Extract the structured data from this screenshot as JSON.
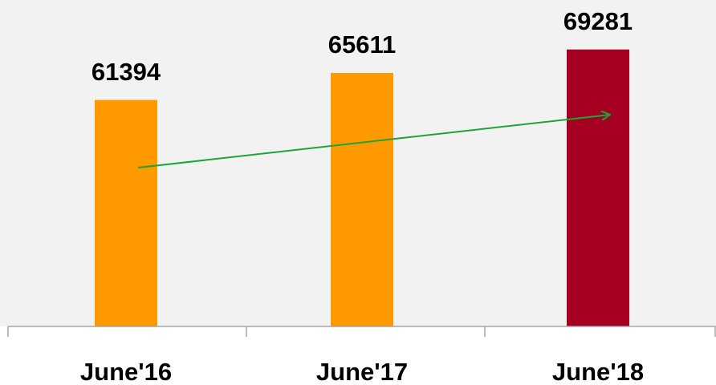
{
  "chart_data": {
    "type": "bar",
    "categories": [
      "June'16",
      "June'17",
      "June'18"
    ],
    "values": [
      61394,
      65611,
      69281
    ],
    "colors": [
      "#ff9900",
      "#ff9900",
      "#a50021"
    ],
    "ylim": [
      26000,
      72000
    ]
  }
}
